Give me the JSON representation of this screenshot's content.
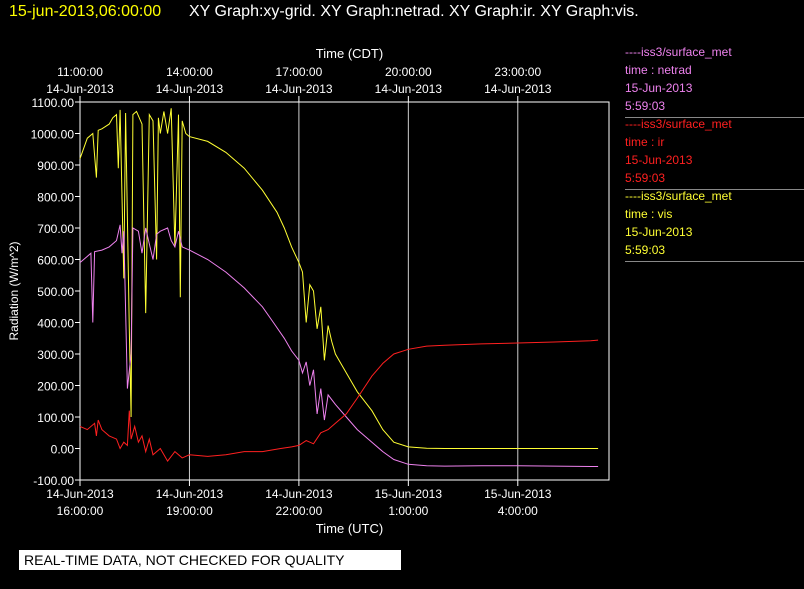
{
  "header": {
    "timestamp": "15-jun-2013,06:00:00",
    "graph_titles": "XY Graph:xy-grid.  XY Graph:netrad.  XY Graph:ir.  XY Graph:vis."
  },
  "colors": {
    "netrad": "#ee82ee",
    "ir": "#ff2020",
    "vis": "#ffff33",
    "grid": "#ffffff",
    "background": "#000000"
  },
  "legend": [
    {
      "source": "----iss3/surface_met",
      "var": "time : netrad",
      "date": "15-Jun-2013",
      "time": "5:59:03"
    },
    {
      "source": "----iss3/surface_met",
      "var": "time : ir",
      "date": "15-Jun-2013",
      "time": "5:59:03"
    },
    {
      "source": "----iss3/surface_met",
      "var": "time : vis",
      "date": "15-Jun-2013",
      "time": "5:59:03"
    }
  ],
  "banner": "REAL-TIME DATA, NOT CHECKED FOR QUALITY",
  "chart_data": {
    "type": "line",
    "ylabel": "Radiation (W/m^2)",
    "xlabel_bottom": "Time (UTC)",
    "xlabel_top": "Time (CDT)",
    "ylim": [
      -100,
      1100
    ],
    "xlim_hours_utc": [
      16.0,
      30.5
    ],
    "y_ticks": [
      "1100.00",
      "1000.00",
      "900.00",
      "800.00",
      "700.00",
      "600.00",
      "500.00",
      "400.00",
      "300.00",
      "200.00",
      "100.00",
      "0.00",
      "-100.00"
    ],
    "bottom_ticks": [
      {
        "t": 16,
        "date": "14-Jun-2013",
        "time": "16:00:00"
      },
      {
        "t": 19,
        "date": "14-Jun-2013",
        "time": "19:00:00"
      },
      {
        "t": 22,
        "date": "14-Jun-2013",
        "time": "22:00:00"
      },
      {
        "t": 25,
        "date": "15-Jun-2013",
        "time": "1:00:00"
      },
      {
        "t": 28,
        "date": "15-Jun-2013",
        "time": "4:00:00"
      }
    ],
    "top_ticks": [
      {
        "t": 16,
        "time": "11:00:00",
        "date": "14-Jun-2013"
      },
      {
        "t": 19,
        "time": "14:00:00",
        "date": "14-Jun-2013"
      },
      {
        "t": 22,
        "time": "17:00:00",
        "date": "14-Jun-2013"
      },
      {
        "t": 25,
        "time": "20:00:00",
        "date": "14-Jun-2013"
      },
      {
        "t": 28,
        "time": "23:00:00",
        "date": "14-Jun-2013"
      }
    ],
    "grid": true,
    "series": [
      {
        "name": "----iss3/surface_met time : vis",
        "key": "vis",
        "points": [
          [
            16.0,
            920
          ],
          [
            16.2,
            985
          ],
          [
            16.35,
            1000
          ],
          [
            16.45,
            860
          ],
          [
            16.5,
            1010
          ],
          [
            16.6,
            1015
          ],
          [
            16.8,
            1030
          ],
          [
            16.9,
            1050
          ],
          [
            17.0,
            1060
          ],
          [
            17.05,
            890
          ],
          [
            17.1,
            1075
          ],
          [
            17.2,
            540
          ],
          [
            17.25,
            1065
          ],
          [
            17.35,
            380
          ],
          [
            17.4,
            100
          ],
          [
            17.45,
            1060
          ],
          [
            17.55,
            1070
          ],
          [
            17.7,
            1030
          ],
          [
            17.8,
            430
          ],
          [
            17.9,
            1060
          ],
          [
            18.0,
            1040
          ],
          [
            18.1,
            600
          ],
          [
            18.15,
            1050
          ],
          [
            18.2,
            1000
          ],
          [
            18.3,
            1070
          ],
          [
            18.4,
            1000
          ],
          [
            18.5,
            1080
          ],
          [
            18.6,
            640
          ],
          [
            18.7,
            1060
          ],
          [
            18.75,
            480
          ],
          [
            18.8,
            1040
          ],
          [
            18.9,
            1000
          ],
          [
            19.0,
            990
          ],
          [
            19.5,
            975
          ],
          [
            20.0,
            940
          ],
          [
            20.5,
            890
          ],
          [
            21.0,
            820
          ],
          [
            21.4,
            750
          ],
          [
            21.6,
            700
          ],
          [
            21.8,
            640
          ],
          [
            22.0,
            590
          ],
          [
            22.1,
            560
          ],
          [
            22.2,
            400
          ],
          [
            22.3,
            520
          ],
          [
            22.4,
            500
          ],
          [
            22.5,
            380
          ],
          [
            22.6,
            450
          ],
          [
            22.7,
            280
          ],
          [
            22.8,
            390
          ],
          [
            22.9,
            340
          ],
          [
            23.0,
            300
          ],
          [
            23.3,
            240
          ],
          [
            23.6,
            180
          ],
          [
            24.0,
            120
          ],
          [
            24.3,
            60
          ],
          [
            24.6,
            20
          ],
          [
            25.0,
            5
          ],
          [
            25.5,
            1
          ],
          [
            26.0,
            0
          ],
          [
            27.0,
            0
          ],
          [
            28.0,
            0
          ],
          [
            29.0,
            0
          ],
          [
            30.0,
            0
          ],
          [
            30.2,
            0
          ]
        ]
      },
      {
        "name": "----iss3/surface_met time : netrad",
        "key": "netrad",
        "points": [
          [
            16.0,
            590
          ],
          [
            16.2,
            610
          ],
          [
            16.3,
            620
          ],
          [
            16.35,
            400
          ],
          [
            16.4,
            625
          ],
          [
            16.6,
            630
          ],
          [
            16.8,
            640
          ],
          [
            17.0,
            660
          ],
          [
            17.1,
            710
          ],
          [
            17.15,
            620
          ],
          [
            17.2,
            690
          ],
          [
            17.3,
            190
          ],
          [
            17.4,
            300
          ],
          [
            17.45,
            700
          ],
          [
            17.6,
            690
          ],
          [
            17.7,
            620
          ],
          [
            17.8,
            700
          ],
          [
            17.9,
            650
          ],
          [
            18.0,
            600
          ],
          [
            18.1,
            680
          ],
          [
            18.2,
            690
          ],
          [
            18.4,
            700
          ],
          [
            18.5,
            660
          ],
          [
            18.6,
            640
          ],
          [
            18.7,
            690
          ],
          [
            18.8,
            640
          ],
          [
            19.0,
            630
          ],
          [
            19.5,
            600
          ],
          [
            20.0,
            560
          ],
          [
            20.5,
            510
          ],
          [
            21.0,
            450
          ],
          [
            21.3,
            400
          ],
          [
            21.6,
            350
          ],
          [
            21.8,
            310
          ],
          [
            22.0,
            280
          ],
          [
            22.1,
            240
          ],
          [
            22.2,
            275
          ],
          [
            22.3,
            200
          ],
          [
            22.4,
            250
          ],
          [
            22.5,
            110
          ],
          [
            22.6,
            190
          ],
          [
            22.7,
            90
          ],
          [
            22.8,
            170
          ],
          [
            23.0,
            140
          ],
          [
            23.3,
            100
          ],
          [
            23.6,
            60
          ],
          [
            24.0,
            20
          ],
          [
            24.3,
            -10
          ],
          [
            24.6,
            -35
          ],
          [
            25.0,
            -50
          ],
          [
            25.5,
            -55
          ],
          [
            26.0,
            -56
          ],
          [
            27.0,
            -55
          ],
          [
            28.0,
            -55
          ],
          [
            29.0,
            -56
          ],
          [
            30.0,
            -57
          ],
          [
            30.2,
            -57
          ]
        ]
      },
      {
        "name": "----iss3/surface_met time : ir",
        "key": "ir",
        "points": [
          [
            16.0,
            70
          ],
          [
            16.2,
            60
          ],
          [
            16.4,
            80
          ],
          [
            16.45,
            40
          ],
          [
            16.5,
            90
          ],
          [
            16.6,
            60
          ],
          [
            16.8,
            40
          ],
          [
            17.0,
            30
          ],
          [
            17.1,
            0
          ],
          [
            17.2,
            20
          ],
          [
            17.3,
            10
          ],
          [
            17.35,
            120
          ],
          [
            17.4,
            30
          ],
          [
            17.5,
            70
          ],
          [
            17.6,
            20
          ],
          [
            17.7,
            40
          ],
          [
            17.8,
            -10
          ],
          [
            17.9,
            30
          ],
          [
            18.0,
            -20
          ],
          [
            18.2,
            0
          ],
          [
            18.4,
            -40
          ],
          [
            18.6,
            -10
          ],
          [
            18.8,
            -30
          ],
          [
            19.0,
            -20
          ],
          [
            19.5,
            -25
          ],
          [
            20.0,
            -20
          ],
          [
            20.5,
            -10
          ],
          [
            21.0,
            -10
          ],
          [
            21.5,
            0
          ],
          [
            21.8,
            5
          ],
          [
            22.0,
            10
          ],
          [
            22.2,
            25
          ],
          [
            22.4,
            15
          ],
          [
            22.6,
            50
          ],
          [
            22.8,
            60
          ],
          [
            23.0,
            80
          ],
          [
            23.3,
            110
          ],
          [
            23.6,
            160
          ],
          [
            24.0,
            230
          ],
          [
            24.3,
            270
          ],
          [
            24.6,
            300
          ],
          [
            25.0,
            315
          ],
          [
            25.5,
            325
          ],
          [
            26.0,
            328
          ],
          [
            27.0,
            332
          ],
          [
            28.0,
            335
          ],
          [
            29.0,
            338
          ],
          [
            30.0,
            342
          ],
          [
            30.2,
            344
          ]
        ]
      }
    ]
  }
}
